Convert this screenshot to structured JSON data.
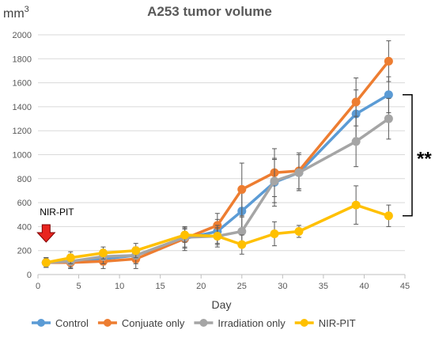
{
  "chart_data": {
    "type": "line",
    "title": "A253 tumor volume",
    "ylabel": "mm",
    "ylabel_superscript": "3",
    "xlabel": "Day",
    "xlim": [
      0,
      45
    ],
    "ylim": [
      0,
      2000
    ],
    "xticks": [
      0,
      5,
      10,
      15,
      20,
      25,
      30,
      35,
      40,
      45
    ],
    "yticks": [
      0,
      200,
      400,
      600,
      800,
      1000,
      1200,
      1400,
      1600,
      1800,
      2000
    ],
    "grid": "horizontal",
    "legend_position": "bottom",
    "annotation": {
      "label": "NIR-PIT",
      "day": 1,
      "color": "#e8251f"
    },
    "significance": {
      "label": "**",
      "between": [
        "Control",
        "NIR-PIT"
      ]
    },
    "series": [
      {
        "name": "Control",
        "color": "#5b9bd5",
        "x": [
          1,
          4,
          8,
          12,
          18,
          22,
          25,
          29,
          32,
          39,
          43
        ],
        "y": [
          100,
          110,
          130,
          160,
          300,
          360,
          530,
          770,
          850,
          1340,
          1500
        ],
        "err": [
          40,
          50,
          50,
          60,
          80,
          100,
          150,
          200,
          150,
          200,
          150
        ]
      },
      {
        "name": "Conjuate only",
        "color": "#ed7d31",
        "x": [
          1,
          4,
          8,
          12,
          18,
          22,
          25,
          29,
          32,
          39,
          43
        ],
        "y": [
          100,
          100,
          110,
          130,
          300,
          410,
          710,
          850,
          865,
          1440,
          1780
        ],
        "err": [
          40,
          50,
          60,
          80,
          100,
          100,
          220,
          200,
          150,
          200,
          170
        ]
      },
      {
        "name": "Irradiation only",
        "color": "#a5a5a5",
        "x": [
          1,
          4,
          8,
          12,
          18,
          22,
          25,
          29,
          32,
          39,
          43
        ],
        "y": [
          100,
          110,
          150,
          160,
          310,
          320,
          360,
          780,
          850,
          1110,
          1300
        ],
        "err": [
          40,
          60,
          60,
          70,
          80,
          90,
          120,
          180,
          150,
          210,
          170
        ]
      },
      {
        "name": "NIR-PIT",
        "color": "#ffc000",
        "x": [
          1,
          4,
          8,
          12,
          18,
          22,
          25,
          29,
          32,
          39,
          43
        ],
        "y": [
          100,
          140,
          180,
          200,
          330,
          320,
          250,
          340,
          360,
          580,
          490
        ],
        "err": [
          40,
          50,
          50,
          60,
          60,
          70,
          80,
          100,
          50,
          160,
          90
        ]
      }
    ]
  }
}
